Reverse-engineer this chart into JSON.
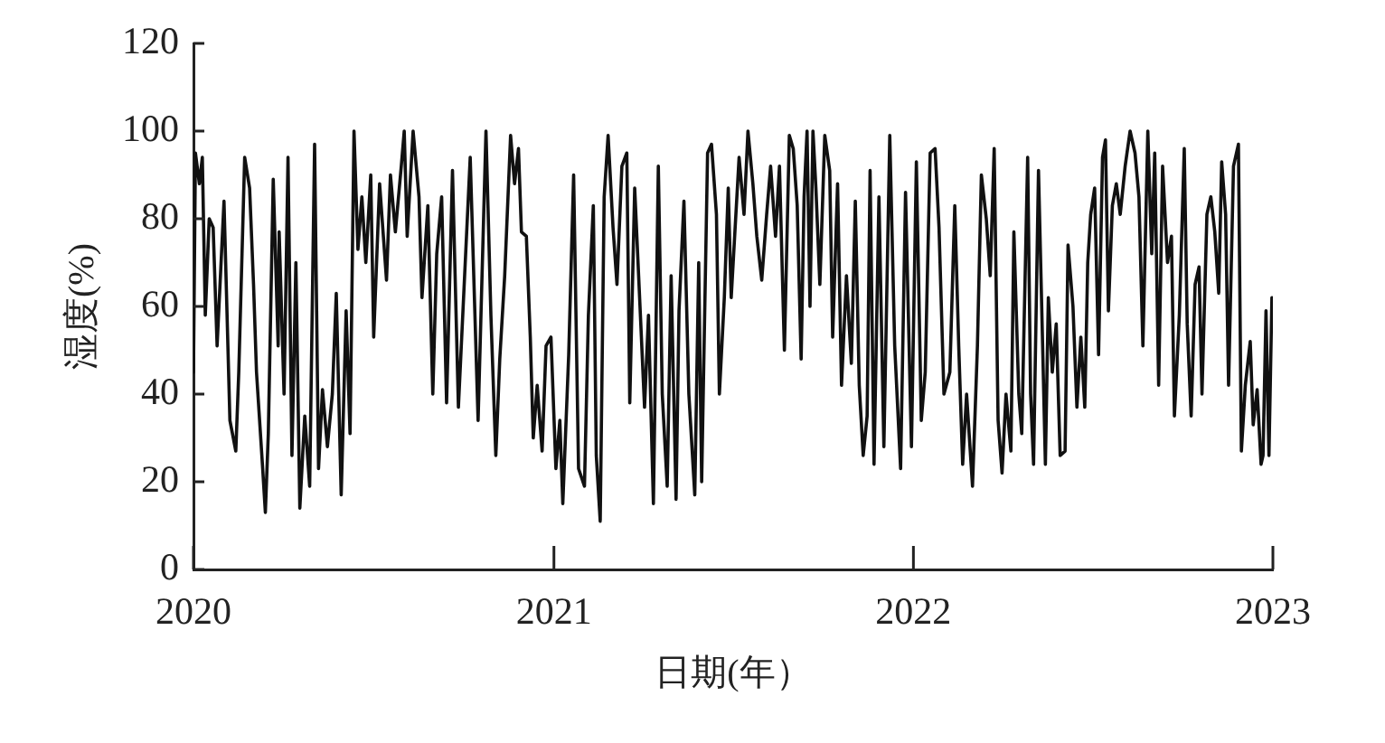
{
  "chart_data": {
    "type": "line",
    "xlabel": "日期(年）",
    "ylabel": "湿度(%)",
    "x": [
      "2020-01-01",
      "2020-01-03",
      "2020-01-07",
      "2020-01-10",
      "2020-01-13",
      "2020-01-17",
      "2020-01-21",
      "2020-01-25",
      "2020-02-01",
      "2020-02-07",
      "2020-02-13",
      "2020-02-16",
      "2020-02-22",
      "2020-02-27",
      "2020-03-02",
      "2020-03-05",
      "2020-03-11",
      "2020-03-14",
      "2020-03-17",
      "2020-03-22",
      "2020-03-27",
      "2020-03-28",
      "2020-04-02",
      "2020-04-06",
      "2020-04-10",
      "2020-04-14",
      "2020-04-18",
      "2020-04-23",
      "2020-04-28",
      "2020-05-03",
      "2020-05-07",
      "2020-05-11",
      "2020-05-16",
      "2020-05-21",
      "2020-05-25",
      "2020-05-30",
      "2020-06-04",
      "2020-06-08",
      "2020-06-12",
      "2020-06-16",
      "2020-06-20",
      "2020-06-24",
      "2020-06-29",
      "2020-07-02",
      "2020-07-08",
      "2020-07-15",
      "2020-07-19",
      "2020-07-24",
      "2020-07-30",
      "2020-08-02",
      "2020-08-05",
      "2020-08-11",
      "2020-08-17",
      "2020-08-20",
      "2020-08-26",
      "2020-08-31",
      "2020-09-04",
      "2020-09-09",
      "2020-09-14",
      "2020-09-20",
      "2020-09-26",
      "2020-10-08",
      "2020-10-16",
      "2020-10-24",
      "2020-10-29",
      "2020-11-03",
      "2020-11-07",
      "2020-11-12",
      "2020-11-18",
      "2020-11-22",
      "2020-11-26",
      "2020-11-29",
      "2020-12-04",
      "2020-12-08",
      "2020-12-11",
      "2020-12-15",
      "2020-12-20",
      "2020-12-24",
      "2020-12-29",
      "2021-01-03",
      "2021-01-07",
      "2021-01-10",
      "2021-01-16",
      "2021-01-21",
      "2021-01-26",
      "2021-02-01",
      "2021-02-05",
      "2021-02-10",
      "2021-02-13",
      "2021-02-17",
      "2021-02-21",
      "2021-02-25",
      "2021-03-02",
      "2021-03-06",
      "2021-03-11",
      "2021-03-16",
      "2021-03-19",
      "2021-03-24",
      "2021-03-28",
      "2021-04-03",
      "2021-04-07",
      "2021-04-12",
      "2021-04-17",
      "2021-04-21",
      "2021-04-26",
      "2021-04-30",
      "2021-05-05",
      "2021-05-08",
      "2021-05-13",
      "2021-05-18",
      "2021-05-24",
      "2021-05-28",
      "2021-05-31",
      "2021-06-06",
      "2021-06-10",
      "2021-06-15",
      "2021-06-18",
      "2021-06-23",
      "2021-06-27",
      "2021-06-30",
      "2021-07-08",
      "2021-07-13",
      "2021-07-17",
      "2021-07-22",
      "2021-07-26",
      "2021-07-31",
      "2021-08-05",
      "2021-08-09",
      "2021-08-14",
      "2021-08-18",
      "2021-08-23",
      "2021-08-28",
      "2021-09-01",
      "2021-09-05",
      "2021-09-09",
      "2021-09-12",
      "2021-09-15",
      "2021-09-18",
      "2021-09-21",
      "2021-09-24",
      "2021-09-28",
      "2021-10-03",
      "2021-10-08",
      "2021-10-11",
      "2021-10-16",
      "2021-10-20",
      "2021-10-25",
      "2021-10-30",
      "2021-11-03",
      "2021-11-07",
      "2021-11-11",
      "2021-11-15",
      "2021-11-18",
      "2021-11-22",
      "2021-11-27",
      "2021-12-02",
      "2021-12-08",
      "2021-12-13",
      "2021-12-19",
      "2021-12-24",
      "2021-12-30",
      "2022-01-04",
      "2022-01-09",
      "2022-01-13",
      "2022-01-18",
      "2022-01-23",
      "2022-01-27",
      "2022-02-01",
      "2022-02-07",
      "2022-02-12",
      "2022-02-16",
      "2022-02-20",
      "2022-02-24",
      "2022-03-02",
      "2022-03-07",
      "2022-03-11",
      "2022-03-16",
      "2022-03-20",
      "2022-03-24",
      "2022-03-28",
      "2022-04-01",
      "2022-04-05",
      "2022-04-10",
      "2022-04-13",
      "2022-04-18",
      "2022-04-21",
      "2022-04-27",
      "2022-04-30",
      "2022-05-03",
      "2022-05-08",
      "2022-05-12",
      "2022-05-15",
      "2022-05-18",
      "2022-05-22",
      "2022-05-26",
      "2022-05-30",
      "2022-06-04",
      "2022-06-07",
      "2022-06-12",
      "2022-06-16",
      "2022-06-20",
      "2022-06-24",
      "2022-06-27",
      "2022-06-30",
      "2022-07-04",
      "2022-07-08",
      "2022-07-12",
      "2022-07-15",
      "2022-07-18",
      "2022-07-22",
      "2022-07-26",
      "2022-07-30",
      "2022-08-04",
      "2022-08-09",
      "2022-08-14",
      "2022-08-18",
      "2022-08-22",
      "2022-08-27",
      "2022-08-31",
      "2022-09-03",
      "2022-09-07",
      "2022-09-11",
      "2022-09-16",
      "2022-09-20",
      "2022-09-23",
      "2022-09-28",
      "2022-10-03",
      "2022-10-06",
      "2022-10-10",
      "2022-10-14",
      "2022-10-18",
      "2022-10-21",
      "2022-10-26",
      "2022-10-30",
      "2022-11-03",
      "2022-11-07",
      "2022-11-10",
      "2022-11-14",
      "2022-11-17",
      "2022-11-22",
      "2022-11-27",
      "2022-11-30",
      "2022-12-04",
      "2022-12-09",
      "2022-12-12",
      "2022-12-16",
      "2022-12-20",
      "2022-12-22",
      "2022-12-25",
      "2022-12-28",
      "2022-12-31"
    ],
    "values": [
      45,
      95,
      88,
      94,
      58,
      80,
      78,
      51,
      84,
      34,
      27,
      45,
      94,
      87,
      65,
      45,
      24,
      13,
      31,
      89,
      51,
      77,
      40,
      94,
      26,
      70,
      14,
      35,
      19,
      97,
      23,
      41,
      28,
      40,
      63,
      17,
      59,
      31,
      100,
      73,
      85,
      70,
      90,
      53,
      88,
      66,
      90,
      77,
      92,
      100,
      76,
      100,
      85,
      62,
      83,
      40,
      72,
      85,
      38,
      91,
      37,
      94,
      34,
      100,
      58,
      26,
      48,
      67,
      99,
      88,
      96,
      77,
      76,
      53,
      30,
      42,
      27,
      51,
      53,
      23,
      34,
      15,
      49,
      90,
      23,
      19,
      58,
      83,
      26,
      11,
      85,
      99,
      78,
      65,
      92,
      95,
      38,
      87,
      67,
      37,
      58,
      15,
      92,
      40,
      19,
      67,
      16,
      59,
      84,
      40,
      17,
      70,
      20,
      95,
      97,
      81,
      40,
      62,
      87,
      62,
      94,
      81,
      100,
      88,
      76,
      66,
      81,
      92,
      76,
      92,
      50,
      99,
      96,
      83,
      48,
      85,
      100,
      60,
      100,
      87,
      65,
      99,
      91,
      53,
      88,
      42,
      67,
      47,
      84,
      42,
      26,
      35,
      91,
      24,
      85,
      28,
      99,
      51,
      23,
      86,
      28,
      93,
      34,
      45,
      95,
      96,
      78,
      40,
      45,
      83,
      51,
      24,
      40,
      19,
      51,
      90,
      80,
      67,
      96,
      34,
      22,
      40,
      27,
      77,
      40,
      31,
      94,
      40,
      24,
      91,
      53,
      24,
      62,
      45,
      56,
      26,
      27,
      74,
      60,
      37,
      53,
      37,
      70,
      81,
      87,
      49,
      94,
      98,
      59,
      83,
      88,
      81,
      92,
      100,
      95,
      85,
      51,
      100,
      72,
      95,
      42,
      92,
      70,
      76,
      35,
      58,
      96,
      56,
      35,
      65,
      69,
      40,
      81,
      85,
      77,
      63,
      93,
      81,
      42,
      92,
      97,
      27,
      42,
      52,
      33,
      41,
      24,
      26,
      59,
      26,
      62
    ],
    "color": "#111111",
    "xlim": [
      "2020-01-01",
      "2023-01-01"
    ],
    "xticks": [
      "2020",
      "2021",
      "2022",
      "2023"
    ],
    "ylim": [
      0,
      120
    ],
    "yticks": [
      0,
      20,
      40,
      60,
      80,
      100,
      120
    ],
    "grid": false
  }
}
